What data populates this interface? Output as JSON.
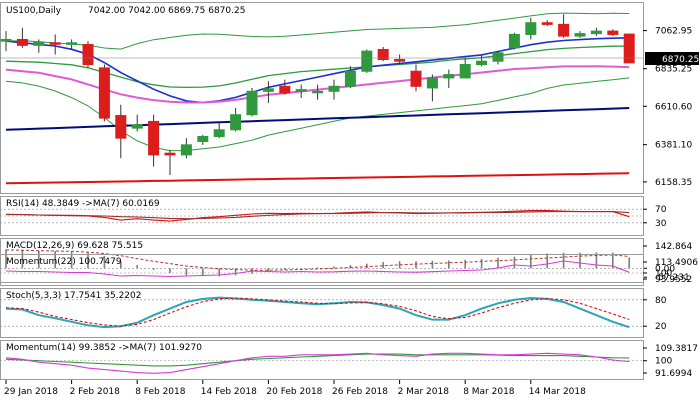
{
  "chart_data": {
    "type": "candlestick",
    "symbol_title": "US100,Daily",
    "ohlc_header": "7042.00 7042.00 6869.75 6870.25",
    "price_ticks": [
      "7062.95",
      "6835.25",
      "6610.60",
      "6381.10",
      "6158.35"
    ],
    "price_range": [
      6110,
      7210
    ],
    "last_price_label": "6870.25",
    "x_labels": [
      "29 Jan 2018",
      "2 Feb 2018",
      "8 Feb 2018",
      "14 Feb 2018",
      "20 Feb 2018",
      "26 Feb 2018",
      "2 Mar 2018",
      "8 Mar 2018",
      "14 Mar 2018"
    ],
    "x_label_index": [
      0,
      4,
      8,
      12,
      16,
      20,
      24,
      28,
      32
    ],
    "candles": [
      {
        "o": 7000,
        "h": 7060,
        "l": 6940,
        "c": 7010
      },
      {
        "o": 7010,
        "h": 7080,
        "l": 6960,
        "c": 6975
      },
      {
        "o": 6975,
        "h": 7010,
        "l": 6930,
        "c": 6995
      },
      {
        "o": 6990,
        "h": 7040,
        "l": 6920,
        "c": 6985
      },
      {
        "o": 6990,
        "h": 7010,
        "l": 6950,
        "c": 6990
      },
      {
        "o": 6980,
        "h": 7000,
        "l": 6840,
        "c": 6860
      },
      {
        "o": 6840,
        "h": 6860,
        "l": 6520,
        "c": 6540
      },
      {
        "o": 6555,
        "h": 6620,
        "l": 6300,
        "c": 6420
      },
      {
        "o": 6480,
        "h": 6560,
        "l": 6460,
        "c": 6500
      },
      {
        "o": 6520,
        "h": 6560,
        "l": 6250,
        "c": 6320
      },
      {
        "o": 6330,
        "h": 6350,
        "l": 6200,
        "c": 6320
      },
      {
        "o": 6320,
        "h": 6420,
        "l": 6300,
        "c": 6380
      },
      {
        "o": 6400,
        "h": 6440,
        "l": 6380,
        "c": 6430
      },
      {
        "o": 6430,
        "h": 6520,
        "l": 6420,
        "c": 6470
      },
      {
        "o": 6470,
        "h": 6600,
        "l": 6460,
        "c": 6560
      },
      {
        "o": 6560,
        "h": 6720,
        "l": 6550,
        "c": 6700
      },
      {
        "o": 6700,
        "h": 6760,
        "l": 6630,
        "c": 6715
      },
      {
        "o": 6730,
        "h": 6770,
        "l": 6680,
        "c": 6690
      },
      {
        "o": 6700,
        "h": 6740,
        "l": 6660,
        "c": 6710
      },
      {
        "o": 6700,
        "h": 6740,
        "l": 6650,
        "c": 6700
      },
      {
        "o": 6700,
        "h": 6770,
        "l": 6650,
        "c": 6730
      },
      {
        "o": 6730,
        "h": 6850,
        "l": 6720,
        "c": 6820
      },
      {
        "o": 6820,
        "h": 6950,
        "l": 6810,
        "c": 6940
      },
      {
        "o": 6950,
        "h": 6965,
        "l": 6880,
        "c": 6890
      },
      {
        "o": 6890,
        "h": 6920,
        "l": 6860,
        "c": 6880
      },
      {
        "o": 6820,
        "h": 6860,
        "l": 6700,
        "c": 6730
      },
      {
        "o": 6720,
        "h": 6800,
        "l": 6640,
        "c": 6780
      },
      {
        "o": 6780,
        "h": 6830,
        "l": 6720,
        "c": 6800
      },
      {
        "o": 6780,
        "h": 6900,
        "l": 6780,
        "c": 6860
      },
      {
        "o": 6860,
        "h": 6920,
        "l": 6850,
        "c": 6880
      },
      {
        "o": 6880,
        "h": 6940,
        "l": 6860,
        "c": 6930
      },
      {
        "o": 6960,
        "h": 7050,
        "l": 6950,
        "c": 7040
      },
      {
        "o": 7040,
        "h": 7140,
        "l": 7010,
        "c": 7110
      },
      {
        "o": 7110,
        "h": 7125,
        "l": 7090,
        "c": 7100
      },
      {
        "o": 7100,
        "h": 7160,
        "l": 7020,
        "c": 7030
      },
      {
        "o": 7030,
        "h": 7060,
        "l": 7020,
        "c": 7045
      },
      {
        "o": 7045,
        "h": 7080,
        "l": 7030,
        "c": 7060
      },
      {
        "o": 7060,
        "h": 7070,
        "l": 7030,
        "c": 7040
      },
      {
        "o": 7042,
        "h": 7042,
        "l": 6869.75,
        "c": 6870.25
      }
    ],
    "price_lines": [
      {
        "name": "bb-upper",
        "color": "#2e9a3c",
        "width": 1,
        "start": 7000,
        "end": 7120
      },
      {
        "name": "bb-middle",
        "color": "#2e9a3c",
        "width": 1.3,
        "start": 6880,
        "end": 6960
      },
      {
        "name": "bb-lower",
        "color": "#2e9a3c",
        "width": 1,
        "start": 6760,
        "end": 6780
      },
      {
        "name": "ma-fast",
        "color": "#1c2fd0",
        "width": 1.6,
        "start": 7000,
        "end": 7010
      },
      {
        "name": "ma-mid",
        "color": "#e05ad8",
        "width": 2,
        "start": 6830,
        "end": 6840
      },
      {
        "name": "ma-slow",
        "color": "#000c78",
        "width": 2,
        "start": 6470,
        "end": 6600
      },
      {
        "name": "ma-long",
        "color": "#e01010",
        "width": 2,
        "start": 6150,
        "end": 6210
      }
    ],
    "panels": [
      {
        "id": "rsi",
        "title": "RSI(14) 48.3849  ->MA(7) 60.0169",
        "ticks": [
          "70",
          "30"
        ],
        "range": [
          0,
          100
        ],
        "levels": [
          70,
          50,
          30
        ],
        "series": [
          {
            "color": "#d41010",
            "values": [
              55,
              54,
              53,
              52,
              51,
              50,
              46,
              38,
              42,
              38,
              35,
              40,
              45,
              48,
              52,
              56,
              58,
              57,
              58,
              57,
              58,
              60,
              62,
              60,
              59,
              57,
              58,
              59,
              60,
              61,
              62,
              64,
              66,
              66,
              64,
              63,
              63,
              63,
              48
            ]
          },
          {
            "color": "#9e2e2e",
            "values": [
              54,
              54,
              53,
              52,
              52,
              51,
              50,
              48,
              47,
              45,
              43,
              42,
              43,
              44,
              46,
              49,
              52,
              54,
              56,
              57,
              57,
              58,
              59,
              60,
              60,
              59,
              59,
              59,
              59,
              60,
              60,
              61,
              62,
              63,
              63,
              63,
              63,
              63,
              60
            ]
          }
        ]
      },
      {
        "id": "macd",
        "title": "MACD(12,26,9) 69.628 75.515",
        "ticks": [
          "142.864",
          "0.00",
          "-57.231"
        ],
        "range": [
          -75,
          175
        ],
        "histogram": [
          120,
          115,
          112,
          110,
          108,
          100,
          80,
          45,
          20,
          -10,
          -30,
          -45,
          -50,
          -52,
          -45,
          -35,
          -20,
          -10,
          -2,
          5,
          12,
          20,
          30,
          40,
          45,
          45,
          48,
          50,
          55,
          60,
          68,
          75,
          85,
          95,
          100,
          100,
          102,
          100,
          69.6
        ],
        "signal": {
          "color": "#c03030",
          "values": [
            118,
            116,
            113,
            111,
            109,
            104,
            95,
            80,
            62,
            45,
            30,
            15,
            5,
            -3,
            -8,
            -12,
            -12,
            -10,
            -8,
            -4,
            0,
            5,
            10,
            16,
            22,
            27,
            31,
            35,
            39,
            44,
            49,
            54,
            60,
            66,
            72,
            78,
            82,
            86,
            75.5
          ]
        }
      },
      {
        "id": "momentum22",
        "title": "Momentum(22) 100.7479",
        "ticks": [
          "113.4906",
          "100",
          "93.9552"
        ],
        "range": [
          90,
          116
        ],
        "levels": [
          100
        ],
        "series": [
          {
            "color": "#d63ad6",
            "values": [
              102,
              101.5,
              101.5,
              101,
              100.5,
              100.5,
              99,
              97,
              97.5,
              97,
              96.5,
              97,
              97.5,
              98,
              99.5,
              102,
              101.5,
              101,
              101.5,
              101,
              101.2,
              101.8,
              102,
              101.5,
              101,
              100.8,
              101.3,
              102,
              102.5,
              103,
              105,
              108,
              107,
              109,
              112,
              110,
              108,
              107,
              100.7
            ]
          }
        ]
      },
      {
        "id": "stoch",
        "title": "Stoch(5,3,3) 17.7541 35.2202",
        "ticks": [
          "80",
          "20"
        ],
        "range": [
          0,
          100
        ],
        "levels": [
          80,
          20
        ],
        "series": [
          {
            "color": "#2aa5b5",
            "values": [
              60,
              58,
              45,
              38,
              30,
              22,
              18,
              20,
              28,
              45,
              60,
              75,
              82,
              85,
              83,
              80,
              78,
              75,
              72,
              70,
              72,
              75,
              74,
              68,
              60,
              45,
              35,
              35,
              45,
              60,
              72,
              80,
              84,
              82,
              75,
              60,
              45,
              30,
              17.8
            ]
          },
          {
            "color": "#d41010",
            "values": [
              62,
              60,
              52,
              42,
              35,
              28,
              23,
              20,
              24,
              35,
              50,
              64,
              76,
              82,
              84,
              82,
              80,
              77,
              75,
              72,
              71,
              73,
              74,
              71,
              65,
              55,
              42,
              37,
              40,
              50,
              62,
              72,
              80,
              83,
              80,
              72,
              60,
              48,
              35.2
            ]
          }
        ]
      },
      {
        "id": "momentum14",
        "title": "Momentum(14) 99.3852  ->MA(7) 101.9270",
        "ticks": [
          "109.3817",
          "100",
          "91.6994"
        ],
        "range": [
          89,
          112
        ],
        "levels": [
          100
        ],
        "series": [
          {
            "color": "#2e9a3c",
            "values": [
              101,
              100.5,
              100,
              99.5,
              99,
              98.5,
              98,
              97.5,
              97,
              96.5,
              96.5,
              97,
              98,
              99,
              100,
              101,
              101.5,
              102,
              102.5,
              103,
              103.5,
              104,
              104.5,
              104.5,
              104.5,
              104,
              104,
              104,
              104,
              104,
              103.8,
              103.5,
              103.5,
              103.5,
              103.5,
              103,
              102.5,
              102,
              101.9
            ]
          },
          {
            "color": "#d63ad6",
            "values": [
              102,
              101,
              99,
              98,
              97,
              95,
              94,
              93,
              92,
              91.5,
              92,
              94,
              96,
              98,
              100,
              102,
              103,
              103,
              104,
              104,
              104,
              104.5,
              105,
              104,
              103.5,
              103,
              104.5,
              105,
              105,
              104.5,
              104,
              104,
              104.5,
              105,
              104.5,
              104,
              102.5,
              100.5,
              99.4
            ]
          }
        ]
      }
    ],
    "colors": {
      "bull": "#2e9a3c",
      "bear": "#dd1c1c",
      "macd_hist": "#7d7d7d",
      "level_line": "#888888"
    }
  }
}
